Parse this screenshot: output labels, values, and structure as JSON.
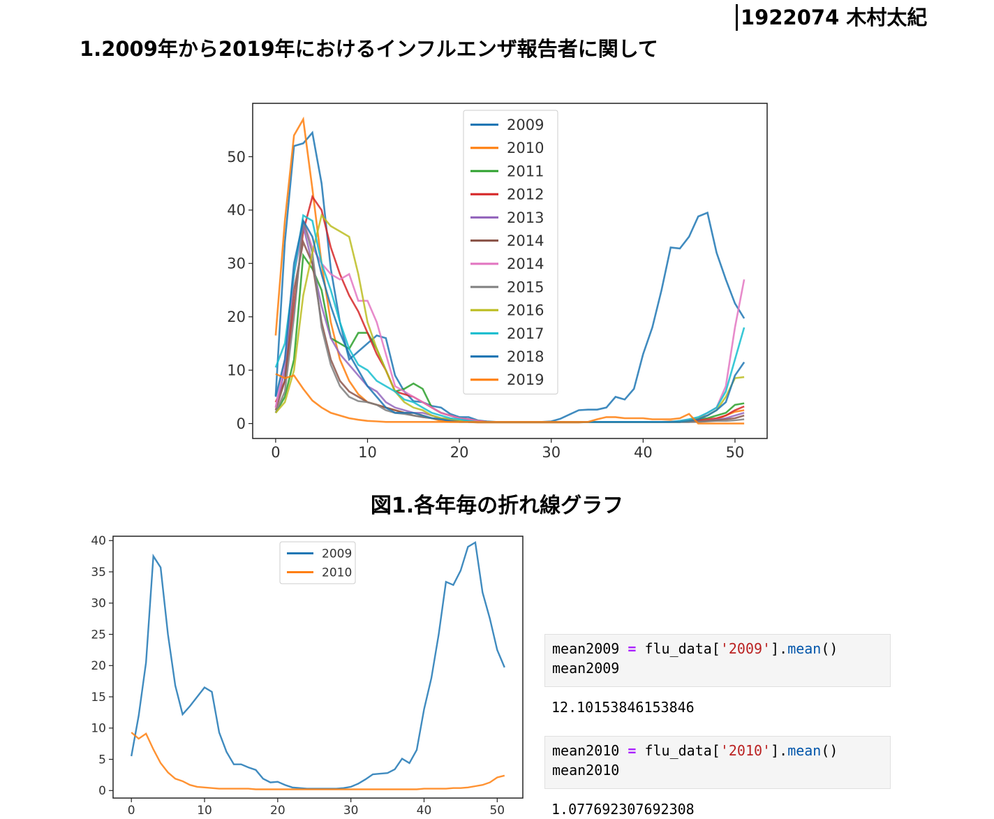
{
  "header": {
    "author": "1922074 木村太紀",
    "heading": "1.2009年から2019年におけるインフルエンザ報告者に関して"
  },
  "figure1": {
    "caption": "図1.各年毎の折れ線グラフ"
  },
  "code_cells": [
    {
      "line1": {
        "var": "mean2009",
        "op": "=",
        "obj": "flu_data[",
        "key": "'2009'",
        "close": "].",
        "method": "mean",
        "call": "()"
      },
      "line2": "mean2009",
      "output": "12.10153846153846"
    },
    {
      "line1": {
        "var": "mean2010",
        "op": "=",
        "obj": "flu_data[",
        "key": "'2010'",
        "close": "].",
        "method": "mean",
        "call": "()"
      },
      "line2": "mean2010",
      "output": "1.077692307692308"
    }
  ],
  "chart_data": [
    {
      "type": "line",
      "x": [
        0,
        1,
        2,
        3,
        4,
        5,
        6,
        7,
        8,
        9,
        10,
        11,
        12,
        13,
        14,
        15,
        16,
        17,
        18,
        19,
        20,
        21,
        22,
        23,
        24,
        25,
        26,
        27,
        28,
        29,
        30,
        31,
        32,
        33,
        34,
        35,
        36,
        37,
        38,
        39,
        40,
        41,
        42,
        43,
        44,
        45,
        46,
        47,
        48,
        49,
        50,
        51
      ],
      "xlim": [
        -2.5,
        53.5
      ],
      "ylim": [
        -2.8,
        60
      ],
      "xticks": [
        0,
        10,
        20,
        30,
        40,
        50
      ],
      "yticks": [
        0,
        10,
        20,
        30,
        40,
        50
      ],
      "legend_position": "upper center",
      "grid": false,
      "series": [
        {
          "name": "2009",
          "color": "#1f77b4",
          "values": [
            5.2,
            34,
            52,
            52.5,
            54.5,
            45,
            29,
            19,
            12,
            13.5,
            15,
            16.5,
            16,
            9,
            6,
            4.2,
            4,
            3.3,
            3,
            1.8,
            1.2,
            1.2,
            0.6,
            0.4,
            0.3,
            0.3,
            0.3,
            0.3,
            0.3,
            0.3,
            0.4,
            0.9,
            1.7,
            2.5,
            2.6,
            2.6,
            3,
            5,
            4.5,
            6.5,
            13,
            18,
            25,
            33,
            32.8,
            35,
            38.8,
            39.5,
            32,
            27,
            22.5,
            19.7
          ]
        },
        {
          "name": "2010",
          "color": "#ff7f0e",
          "values": [
            16.5,
            38,
            54,
            57,
            44,
            30,
            19,
            12,
            8,
            5.5,
            4,
            3.5,
            3,
            2.5,
            2,
            2,
            1.5,
            1,
            0.5,
            0.3,
            0.3,
            0.3,
            0.2,
            0.2,
            0.2,
            0.2,
            0.2,
            0.2,
            0.2,
            0.2,
            0.2,
            0.2,
            0.2,
            0.2,
            0.3,
            0.3,
            0.3,
            0.3,
            0.3,
            0.3,
            0.3,
            0.3,
            0.3,
            0.4,
            0.4,
            0.5,
            0.5,
            0.5,
            0.8,
            1.5,
            2.2,
            2.5
          ]
        },
        {
          "name": "2011",
          "color": "#2ca02c",
          "values": [
            2,
            5,
            12,
            31.5,
            29,
            25,
            16,
            15,
            14,
            17,
            17,
            14,
            10,
            6,
            6.5,
            7.5,
            6.5,
            3,
            2,
            1.5,
            1,
            0.8,
            0.5,
            0.3,
            0.3,
            0.3,
            0.3,
            0.3,
            0.3,
            0.3,
            0.3,
            0.3,
            0.3,
            0.3,
            0.3,
            0.3,
            0.3,
            0.3,
            0.3,
            0.3,
            0.3,
            0.3,
            0.3,
            0.3,
            0.3,
            0.5,
            0.8,
            1,
            1.5,
            2,
            3.5,
            3.8
          ]
        },
        {
          "name": "2012",
          "color": "#d62728",
          "values": [
            4,
            8,
            22,
            36,
            42.5,
            40,
            33,
            28,
            24,
            21,
            17,
            13,
            10,
            6,
            5.5,
            5,
            4,
            3,
            2,
            1.5,
            1,
            0.8,
            0.5,
            0.3,
            0.3,
            0.3,
            0.3,
            0.3,
            0.3,
            0.3,
            0.3,
            0.3,
            0.3,
            0.3,
            0.3,
            0.3,
            0.3,
            0.3,
            0.3,
            0.3,
            0.3,
            0.3,
            0.3,
            0.3,
            0.3,
            0.5,
            0.6,
            0.8,
            1,
            1.5,
            2.5,
            3.2
          ]
        },
        {
          "name": "2013",
          "color": "#9467bd",
          "values": [
            3,
            10,
            28,
            37,
            30,
            22,
            16,
            13,
            11,
            9,
            7,
            6,
            4,
            3,
            2.5,
            2,
            2,
            1.5,
            1,
            0.8,
            0.5,
            0.5,
            0.3,
            0.3,
            0.3,
            0.3,
            0.3,
            0.3,
            0.3,
            0.3,
            0.3,
            0.3,
            0.3,
            0.3,
            0.3,
            0.3,
            0.3,
            0.3,
            0.3,
            0.3,
            0.3,
            0.3,
            0.3,
            0.3,
            0.3,
            0.3,
            0.4,
            0.5,
            0.7,
            1,
            1.5,
            2
          ]
        },
        {
          "name": "2014",
          "color": "#8c564b",
          "values": [
            2.5,
            8,
            25,
            34,
            30,
            19,
            12,
            8,
            6,
            5,
            4,
            3.5,
            3,
            2.5,
            2,
            1.5,
            1.2,
            1,
            0.8,
            0.5,
            0.5,
            0.3,
            0.3,
            0.3,
            0.3,
            0.3,
            0.3,
            0.3,
            0.3,
            0.3,
            0.3,
            0.3,
            0.3,
            0.3,
            0.3,
            0.3,
            0.3,
            0.3,
            0.3,
            0.3,
            0.3,
            0.3,
            0.3,
            0.3,
            0.3,
            0.3,
            0.4,
            0.5,
            0.6,
            0.8,
            1,
            1.5
          ]
        },
        {
          "name": "2014",
          "color": "#e377c2",
          "values": [
            3,
            12,
            28,
            38,
            33,
            30,
            28,
            27,
            28,
            23,
            23,
            19,
            13,
            7,
            6,
            5,
            4,
            3,
            2,
            1.5,
            1,
            0.8,
            0.5,
            0.3,
            0.3,
            0.3,
            0.3,
            0.3,
            0.3,
            0.3,
            0.3,
            0.3,
            0.3,
            0.3,
            0.3,
            0.3,
            0.3,
            0.3,
            0.3,
            0.3,
            0.3,
            0.3,
            0.3,
            0.3,
            0.5,
            0.8,
            1,
            2,
            3,
            7,
            18,
            27
          ]
        },
        {
          "name": "2015",
          "color": "#7f7f7f",
          "values": [
            2,
            6,
            20,
            38,
            32,
            18,
            11,
            7,
            5,
            4.2,
            4,
            3.5,
            2.5,
            2,
            1.8,
            1.5,
            1.2,
            1,
            0.8,
            0.6,
            0.5,
            0.3,
            0.3,
            0.3,
            0.3,
            0.3,
            0.3,
            0.3,
            0.3,
            0.3,
            0.3,
            0.3,
            0.3,
            0.3,
            0.3,
            0.3,
            0.3,
            0.3,
            0.3,
            0.3,
            0.3,
            0.3,
            0.3,
            0.3,
            0.3,
            0.3,
            0.3,
            0.4,
            0.5,
            0.5,
            0.6,
            0.8
          ]
        },
        {
          "name": "2016",
          "color": "#bcbd22",
          "values": [
            2,
            4,
            10,
            24,
            32,
            39,
            37,
            36,
            35,
            28,
            19,
            14,
            10,
            6,
            4,
            3,
            2.5,
            1.5,
            1,
            0.8,
            0.5,
            0.3,
            0.3,
            0.3,
            0.3,
            0.3,
            0.3,
            0.3,
            0.3,
            0.3,
            0.3,
            0.3,
            0.3,
            0.3,
            0.3,
            0.3,
            0.3,
            0.3,
            0.3,
            0.3,
            0.3,
            0.3,
            0.3,
            0.3,
            0.3,
            0.5,
            1,
            1.5,
            2.5,
            5,
            8.5,
            8.7
          ]
        },
        {
          "name": "2017",
          "color": "#17becf",
          "values": [
            10.5,
            15,
            28,
            39,
            38,
            30,
            25,
            19,
            14,
            11,
            10,
            8,
            7,
            6,
            4.5,
            4,
            3,
            2,
            1.5,
            1,
            0.8,
            0.5,
            0.3,
            0.3,
            0.3,
            0.3,
            0.3,
            0.3,
            0.3,
            0.3,
            0.3,
            0.3,
            0.3,
            0.3,
            0.3,
            0.3,
            0.3,
            0.3,
            0.3,
            0.3,
            0.3,
            0.3,
            0.3,
            0.3,
            0.5,
            0.8,
            1.2,
            2,
            3,
            6,
            12,
            18
          ]
        },
        {
          "name": "2018",
          "color": "#1f77b4",
          "values": [
            5,
            12,
            30,
            38,
            35,
            28,
            22,
            17,
            13,
            10,
            7,
            5,
            3,
            2,
            2,
            2,
            1.5,
            1,
            0.8,
            0.5,
            0.3,
            0.3,
            0.3,
            0.3,
            0.3,
            0.3,
            0.3,
            0.3,
            0.3,
            0.3,
            0.3,
            0.3,
            0.3,
            0.3,
            0.3,
            0.3,
            0.3,
            0.3,
            0.3,
            0.3,
            0.3,
            0.3,
            0.3,
            0.3,
            0.3,
            0.5,
            0.8,
            1.5,
            2.5,
            4,
            9,
            11.5
          ]
        },
        {
          "name": "2019",
          "color": "#ff7f0e",
          "values": [
            9.3,
            8.5,
            9,
            6.5,
            4.3,
            3,
            2,
            1.5,
            1,
            0.7,
            0.5,
            0.4,
            0.3,
            0.3,
            0.3,
            0.3,
            0.3,
            0.3,
            0.3,
            0.3,
            0.3,
            0.3,
            0.3,
            0.3,
            0.3,
            0.3,
            0.3,
            0.3,
            0.3,
            0.3,
            0.3,
            0.3,
            0.3,
            0.3,
            0.3,
            0.8,
            1.2,
            1.2,
            1,
            1,
            1,
            0.8,
            0.8,
            0.8,
            1,
            1.8,
            0,
            0,
            0,
            0,
            0,
            0
          ]
        }
      ]
    },
    {
      "type": "line",
      "x": [
        0,
        1,
        2,
        3,
        4,
        5,
        6,
        7,
        8,
        9,
        10,
        11,
        12,
        13,
        14,
        15,
        16,
        17,
        18,
        19,
        20,
        21,
        22,
        23,
        24,
        25,
        26,
        27,
        28,
        29,
        30,
        31,
        32,
        33,
        34,
        35,
        36,
        37,
        38,
        39,
        40,
        41,
        42,
        43,
        44,
        45,
        46,
        47,
        48,
        49,
        50,
        51
      ],
      "xlim": [
        -2.5,
        53.5
      ],
      "ylim": [
        -1.2,
        40.7
      ],
      "xticks": [
        0,
        10,
        20,
        30,
        40,
        50
      ],
      "xtick_labels": [
        "0",
        "10",
        "20",
        "30",
        "40",
        "50"
      ],
      "yticks": [
        0,
        5,
        10,
        15,
        20,
        25,
        30,
        35,
        40
      ],
      "legend_position": "upper center",
      "grid": false,
      "series": [
        {
          "name": "2009",
          "color": "#1f77b4",
          "values": [
            5.5,
            12,
            20.5,
            37.5,
            35.7,
            25,
            16.8,
            12.2,
            13.5,
            15,
            16.5,
            15.8,
            9.3,
            6.2,
            4.2,
            4.2,
            3.7,
            3.3,
            1.9,
            1.3,
            1.4,
            0.9,
            0.5,
            0.4,
            0.3,
            0.3,
            0.3,
            0.3,
            0.3,
            0.4,
            0.6,
            1.1,
            1.8,
            2.6,
            2.7,
            2.8,
            3.4,
            5.1,
            4.4,
            6.5,
            13,
            18,
            25,
            33.4,
            32.9,
            35.2,
            39,
            39.7,
            31.7,
            27.5,
            22.5,
            19.7
          ]
        },
        {
          "name": "2010",
          "color": "#ff7f0e",
          "values": [
            9.3,
            8.3,
            9.1,
            6.6,
            4.4,
            2.9,
            1.9,
            1.5,
            0.9,
            0.6,
            0.5,
            0.4,
            0.3,
            0.3,
            0.3,
            0.3,
            0.3,
            0.2,
            0.2,
            0.2,
            0.2,
            0.2,
            0.2,
            0.2,
            0.2,
            0.2,
            0.2,
            0.2,
            0.2,
            0.2,
            0.2,
            0.2,
            0.2,
            0.2,
            0.2,
            0.2,
            0.2,
            0.2,
            0.2,
            0.2,
            0.3,
            0.3,
            0.3,
            0.3,
            0.4,
            0.4,
            0.5,
            0.7,
            0.9,
            1.3,
            2.1,
            2.4
          ]
        }
      ]
    }
  ]
}
